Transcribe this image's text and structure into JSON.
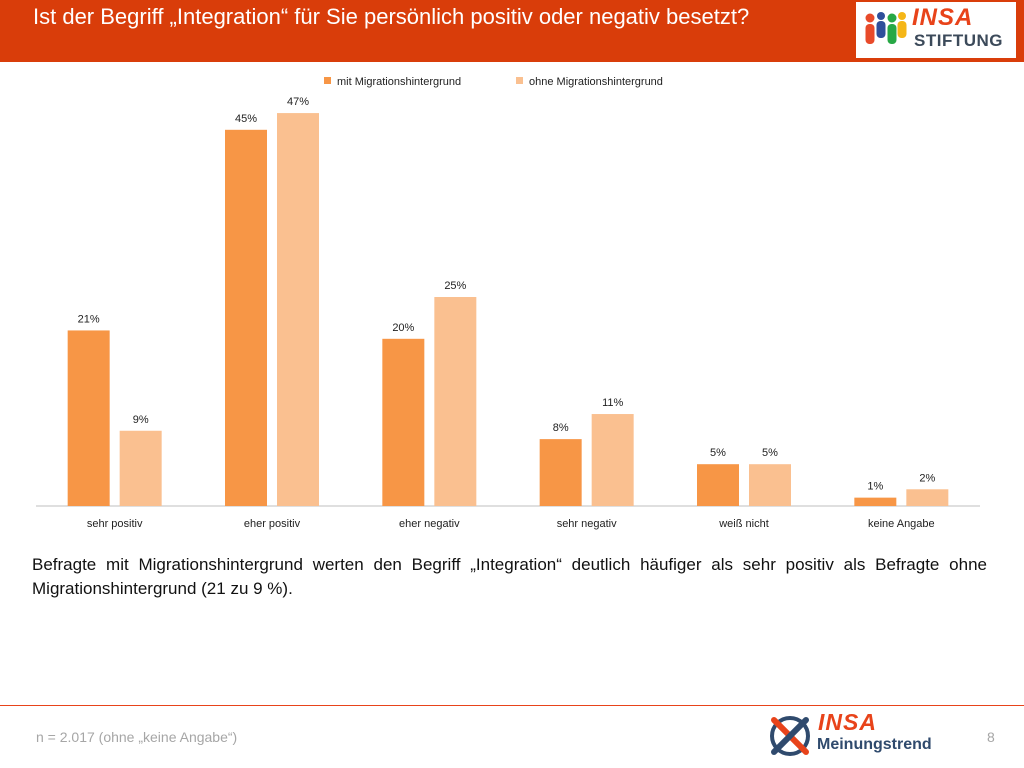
{
  "header": {
    "title": "Ist der Begriff „Integration“ für Sie persönlich positiv oder negativ besetzt?",
    "logo_word1": "INSA",
    "logo_word2": "STIFTUNG"
  },
  "chart_data": {
    "type": "bar",
    "categories": [
      "sehr positiv",
      "eher positiv",
      "eher negativ",
      "sehr negativ",
      "weiß nicht",
      "keine Angabe"
    ],
    "series": [
      {
        "name": "mit Migrationshintergrund",
        "values": [
          21,
          45,
          20,
          8,
          5,
          1
        ],
        "color": "#f79646"
      },
      {
        "name": "ohne Migrationshintergrund",
        "values": [
          9,
          47,
          25,
          11,
          5,
          2
        ],
        "color": "#fac090"
      }
    ],
    "value_suffix": "%",
    "ylim": [
      0,
      50
    ],
    "grid": false,
    "legend_position": "top-center"
  },
  "summary": "Befragte mit Migrationshintergrund werten den Begriff „Integration“ deutlich häufiger als sehr positiv als Befragte ohne Migrationshintergrund (21 zu 9 %).",
  "footer": {
    "note": "n = 2.017 (ohne „keine Angabe“)",
    "logo_word1": "INSA",
    "logo_word2": "Meinungstrend",
    "page_number": "8"
  },
  "colors": {
    "header_bg": "#d93d0a",
    "brand_orange": "#e8431a",
    "brand_navy": "#2f4a6d"
  }
}
